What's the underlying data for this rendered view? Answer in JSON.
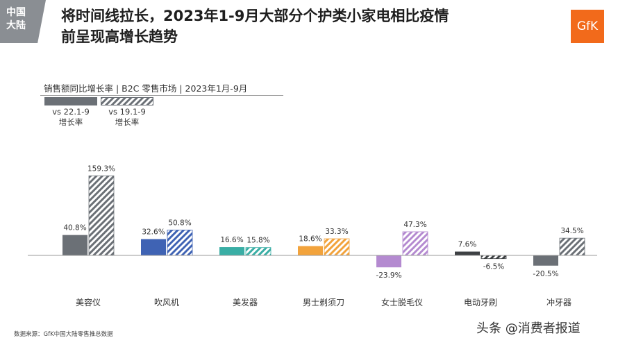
{
  "header": {
    "region_line1": "中国",
    "region_line2": "大陆",
    "title_line1": "将时间线拉长，2023年1-9月大部分个护类小家电相比疫情",
    "title_line2": "前呈现高增长趋势",
    "logo_text": "GfK",
    "brand_color": "#f26a1b"
  },
  "legend": {
    "subtitle": "销售额同比增长率 | B2C 零售市场 | 2023年1月-9月",
    "items": [
      {
        "label_line1": "vs 22.1-9",
        "label_line2": "增长率",
        "style": "solid",
        "color": "#6b7076"
      },
      {
        "label_line1": "vs 19.1-9",
        "label_line2": "增长率",
        "style": "hatched",
        "color": "#6b7076"
      }
    ]
  },
  "chart_data": {
    "type": "bar",
    "categories": [
      "美容仪",
      "吹风机",
      "美发器",
      "男士剃须刀",
      "女士脱毛仪",
      "电动牙刷",
      "冲牙器"
    ],
    "series": [
      {
        "name": "vs 22.1-9 增长率",
        "style": "solid",
        "values": [
          40.8,
          32.6,
          16.6,
          18.6,
          -23.9,
          7.6,
          -20.5
        ],
        "labels": [
          "40.8%",
          "32.6%",
          "16.6%",
          "18.6%",
          "-23.9%",
          "7.6%",
          "-20.5%"
        ]
      },
      {
        "name": "vs 19.1-9 增长率",
        "style": "hatched",
        "values": [
          159.3,
          50.8,
          15.8,
          33.3,
          47.3,
          -6.5,
          34.5
        ],
        "labels": [
          "159.3%",
          "50.8%",
          "15.8%",
          "33.3%",
          "47.3%",
          "-6.5%",
          "34.5%"
        ]
      }
    ],
    "colors": [
      "#6b7076",
      "#3f63b4",
      "#3aaea5",
      "#f2a33c",
      "#b48ad0",
      "#3d4043",
      "#6b7076"
    ],
    "unit": "%"
  },
  "footer": {
    "source": "数据来源：GfK中国大陆零售推总数据",
    "watermark": "头条 @消费者报道"
  }
}
